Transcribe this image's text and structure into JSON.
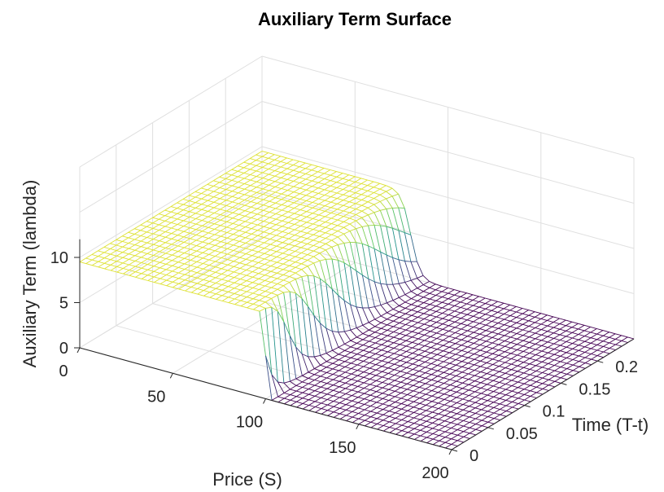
{
  "chart_data": {
    "type": "surface",
    "title": "Auxiliary Term Surface",
    "xlabel": "Price (S)",
    "ylabel": "Time (T-t)",
    "zlabel": "Auxiliary Term (lambda)",
    "xlim": [
      0,
      200
    ],
    "ylim": [
      0,
      0.25
    ],
    "zlim": [
      0,
      10
    ],
    "xticks": [
      "0",
      "50",
      "100",
      "150",
      "200"
    ],
    "yticks": [
      "0",
      "0.05",
      "0.1",
      "0.15",
      "0.2"
    ],
    "zticks": [
      "0",
      "5",
      "10"
    ],
    "grid": true,
    "colormap": [
      "#440154",
      "#3b528b",
      "#21918c",
      "#5ec962",
      "#fde725"
    ],
    "surface": {
      "high_value": 9.5,
      "low_value": 0,
      "boundary_price_at_t0": 100,
      "boundary_price_at_tmax": 80,
      "price_range": [
        0,
        200
      ],
      "time_range": [
        0,
        0.25
      ],
      "price_samples": 60,
      "time_samples": 30
    }
  }
}
